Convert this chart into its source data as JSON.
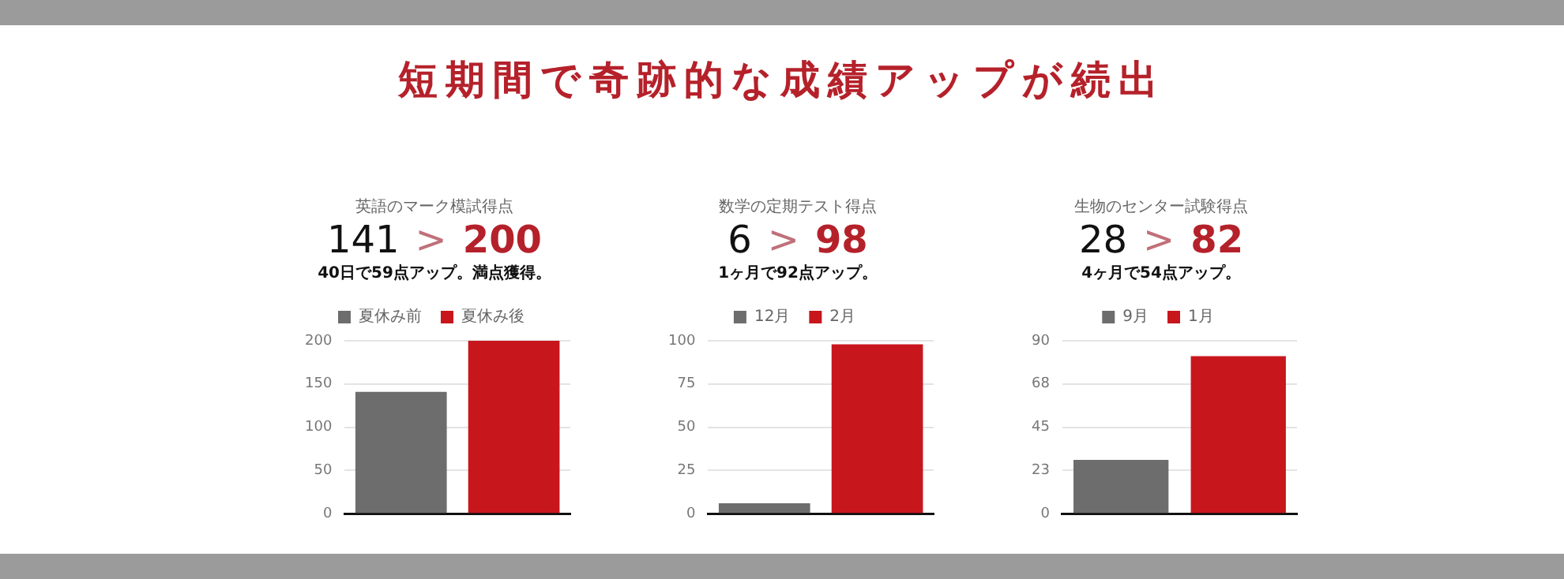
{
  "chart_data": [
    {
      "type": "other",
      "title": "短期間で奇跡的な成績アップが続出"
    },
    {
      "type": "bar",
      "title": "英語のマーク模試得点",
      "annotations": [
        "141",
        ">",
        "200"
      ],
      "subtitle": "40日で59点アップ。満点獲得。",
      "categories": [
        null,
        null
      ],
      "series": [
        {
          "name": "夏休み前",
          "color": "#6d6d6d",
          "values": [
            141,
            null
          ]
        },
        {
          "name": "夏休み後",
          "color": "#c8161d",
          "values": [
            null,
            200
          ]
        }
      ],
      "ylim": [
        0,
        200
      ],
      "yticks": [
        0,
        50,
        100,
        150,
        200
      ],
      "grid": "y",
      "legend": "top"
    },
    {
      "type": "bar",
      "title": "数学の定期テスト得点",
      "annotations": [
        "6",
        ">",
        "98"
      ],
      "subtitle": "1ヶ月で92点アップ。",
      "categories": [
        null,
        null
      ],
      "series": [
        {
          "name": "12月",
          "color": "#6d6d6d",
          "values": [
            6,
            null
          ]
        },
        {
          "name": "2月",
          "color": "#c8161d",
          "values": [
            null,
            98
          ]
        }
      ],
      "ylim": [
        0,
        100
      ],
      "yticks": [
        0,
        25,
        50,
        75,
        100
      ],
      "grid": "y",
      "legend": "top"
    },
    {
      "type": "bar",
      "title": "生物のセンター試験得点",
      "annotations": [
        "28",
        ">",
        "82"
      ],
      "subtitle": "4ヶ月で54点アップ。",
      "categories": [
        null,
        null
      ],
      "series": [
        {
          "name": "9月",
          "color": "#6d6d6d",
          "values": [
            28,
            null
          ]
        },
        {
          "name": "1月",
          "color": "#c8161d",
          "values": [
            null,
            82
          ]
        }
      ],
      "ylim": [
        0,
        90
      ],
      "yticks": [
        0,
        {
          "value": 22.5,
          "label": "23"
        },
        45,
        {
          "value": 67.5,
          "label": "68"
        },
        90
      ],
      "grid": "y",
      "legend": "top"
    }
  ]
}
